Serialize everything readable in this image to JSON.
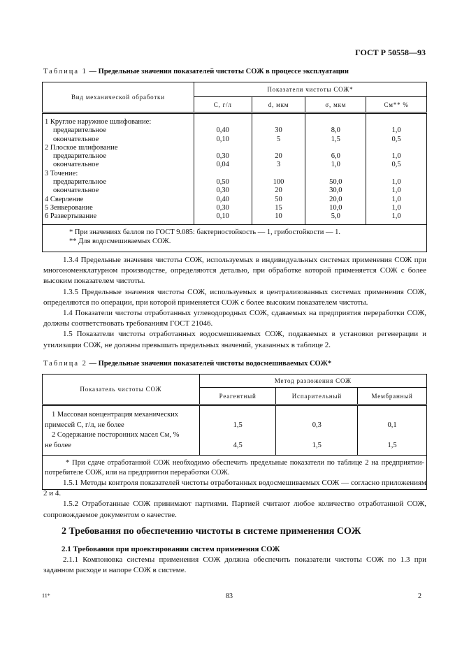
{
  "header": {
    "standard": "ГОСТ Р 50558—93"
  },
  "table1": {
    "label": "Таблица 1",
    "title": "— Предельные значения показателей чистоты СОЖ в процессе эксплуатации",
    "col_main": "Вид механической обработки",
    "col_group": "Показатели чистоты СОЖ*",
    "cols": [
      "C, г/л",
      "d, мкм",
      "σ, мкм",
      "Cм** %"
    ],
    "rows": [
      {
        "name": "1 Круглое наружное шлифование:",
        "v": [
          "",
          "",
          "",
          ""
        ]
      },
      {
        "name": "предварительное",
        "indent": true,
        "v": [
          "0,40",
          "30",
          "8,0",
          "1,0"
        ]
      },
      {
        "name": "окончательное",
        "indent": true,
        "v": [
          "0,10",
          "5",
          "1,5",
          "0,5"
        ]
      },
      {
        "name": "2 Плоское шлифование",
        "v": [
          "",
          "",
          "",
          ""
        ]
      },
      {
        "name": "предварительное",
        "indent": true,
        "v": [
          "0,30",
          "20",
          "6,0",
          "1,0"
        ]
      },
      {
        "name": "окончательное",
        "indent": true,
        "v": [
          "0,04",
          "3",
          "1,0",
          "0,5"
        ]
      },
      {
        "name": "3 Точение:",
        "v": [
          "",
          "",
          "",
          ""
        ]
      },
      {
        "name": "предварительное",
        "indent": true,
        "v": [
          "0,50",
          "100",
          "50,0",
          "1,0"
        ]
      },
      {
        "name": "окончательное",
        "indent": true,
        "v": [
          "0,30",
          "20",
          "30,0",
          "1,0"
        ]
      },
      {
        "name": "4 Сверление",
        "v": [
          "0,40",
          "50",
          "20,0",
          "1,0"
        ]
      },
      {
        "name": "5 Зенкерование",
        "v": [
          "0,30",
          "15",
          "10,0",
          "1,0"
        ]
      },
      {
        "name": "6 Развертывание",
        "v": [
          "0,10",
          "10",
          "5,0",
          "1,0"
        ]
      }
    ],
    "notes": [
      "* При значениях баллов по ГОСТ 9.085: бактериостойкость — 1, грибостойкости — 1.",
      "** Для водосмешиваемых СОЖ."
    ]
  },
  "paragraphs1": [
    "1.3.4 Предельные значения чистоты СОЖ, используемых в индивидуальных системах применения СОЖ при многономенклатурном производстве, определяются деталью, при обработке которой применяется СОЖ с более высоким показателем чистоты.",
    "1.3.5 Предельные значения чистоты СОЖ, используемых в централизованных системах применения СОЖ, определяются по операции, при которой применяется СОЖ с более высоким показателем чистоты.",
    "1.4 Показатели чистоты отработанных углеводородных СОЖ, сдаваемых на предприятия переработки СОЖ, должны соответствовать требованиям ГОСТ 21046.",
    "1.5 Показатели чистоты отработанных водосмешиваемых СОЖ, подаваемых в установки регенерации и утилизации СОЖ, не должны превышать предельных значений, указанных в таблице 2."
  ],
  "table2": {
    "label": "Таблица 2",
    "title": "— Предельные значения показателей чистоты водосмешиваемых СОЖ*",
    "col_main": "Показатель чистоты СОЖ",
    "col_group": "Метод разложения СОЖ",
    "cols": [
      "Реагентный",
      "Испарительный",
      "Мембранный"
    ],
    "rows": [
      {
        "l1": "1 Массовая концентрация механических",
        "l2": "примесей C, г/л, не более",
        "v": [
          "1,5",
          "0,3",
          "0,1"
        ]
      },
      {
        "l1": "2 Содержание посторонних масел Cм, %",
        "l2": "не более",
        "v": [
          "4,5",
          "1,5",
          "1,5"
        ]
      }
    ],
    "note": "* При сдаче отработанной СОЖ необходимо обеспечить предельные показатели по таблице 2 на предприятии-потребителе СОЖ, или на предприятии переработки СОЖ."
  },
  "paragraphs2": [
    "1.5.1 Методы контроля показателей чистоты отработанных водосмешиваемых СОЖ — согласно приложениям 2 и 4.",
    "1.5.2 Отработанные СОЖ принимают партиями. Партией считают любое количество отработанной СОЖ, сопровождаемое документом о качестве."
  ],
  "section2": {
    "title": "2 Требования по обеспечению чистоты в системе применения СОЖ",
    "sub": "2.1 Требования при проектировании систем применения СОЖ",
    "p": "2.1.1 Компоновка системы применения СОЖ должна обеспечить показатели чистоты СОЖ по 1.3 при заданном расходе и напоре СОЖ в системе."
  },
  "footer": {
    "left": "11*",
    "center": "83",
    "right": "2"
  }
}
